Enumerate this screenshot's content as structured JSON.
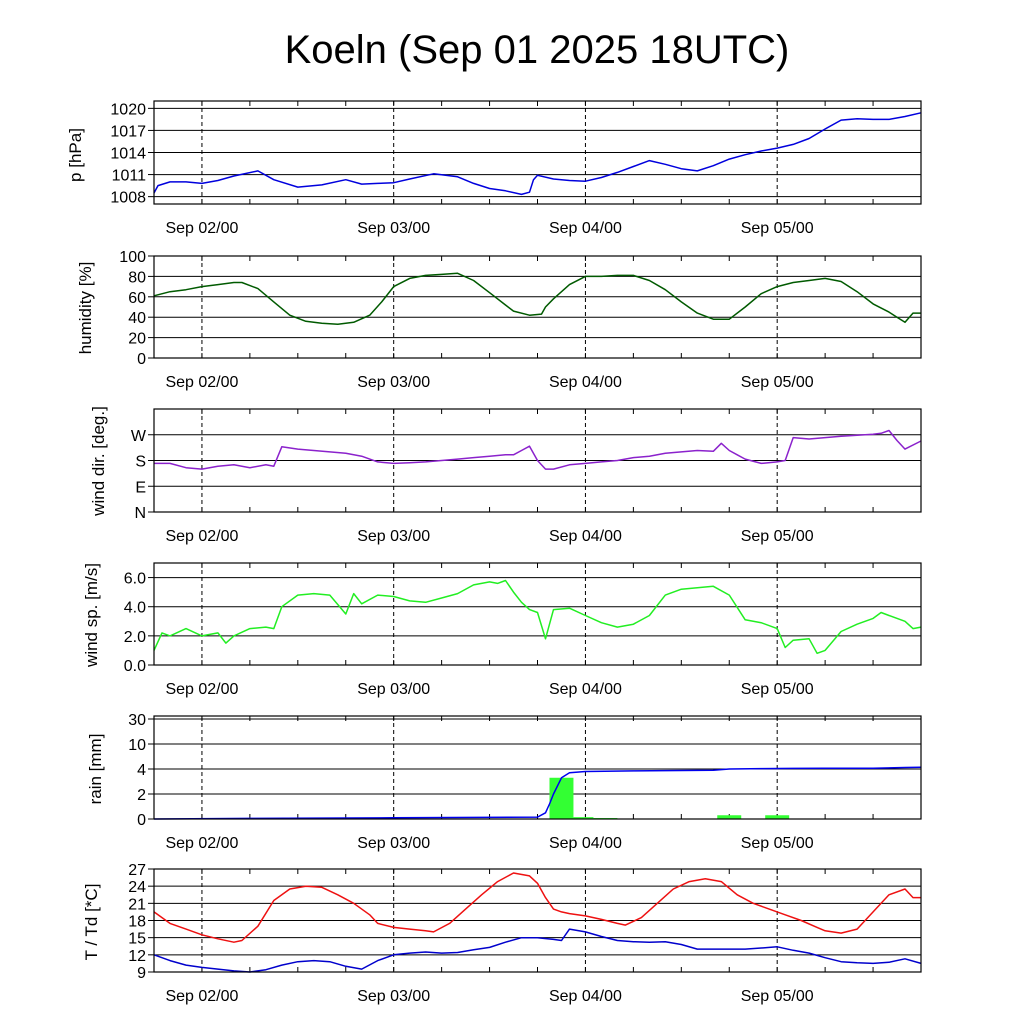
{
  "title": "Koeln (Sep 01 2025 18UTC)",
  "colors": {
    "pressure": "#0000dd",
    "humidity": "#005a00",
    "wind_dir": "#8b22cc",
    "wind_speed": "#22ee22",
    "rain_bars": "#33ff33",
    "rain_cumulative": "#0000ee",
    "temperature": "#ee1111",
    "dewpoint": "#0000cc"
  },
  "chart_data": [
    {
      "type": "line",
      "ylabel": "p [hPa]",
      "x_unit": "hours since Sep 01 18UTC",
      "xlim": [
        0,
        96
      ],
      "x_ticks": [
        6,
        30,
        54,
        78
      ],
      "x_ticklabels": [
        "Sep 02/00",
        "Sep 03/00",
        "Sep 04/00",
        "Sep 05/00"
      ],
      "ylim": [
        1007,
        1021
      ],
      "yticks": [
        1008,
        1011,
        1014,
        1017,
        1020
      ],
      "yticklabels": [
        "1008",
        "1011",
        "1014",
        "1017",
        "1020"
      ],
      "series": [
        {
          "name": "pressure",
          "x": [
            0,
            0.5,
            2,
            4,
            6,
            8,
            10,
            13,
            15,
            18,
            21,
            24,
            26,
            28,
            30,
            32,
            35,
            38,
            40,
            42,
            44,
            46,
            47,
            47.5,
            48,
            50,
            52,
            54,
            56,
            58,
            60,
            62,
            64,
            66,
            68,
            70,
            72,
            74,
            76,
            78,
            80,
            82,
            84,
            86,
            88,
            90,
            92,
            94,
            96
          ],
          "y": [
            1008.5,
            1009.5,
            1010.0,
            1010.0,
            1009.8,
            1010.2,
            1010.8,
            1011.5,
            1010.3,
            1009.3,
            1009.6,
            1010.3,
            1009.7,
            1009.8,
            1009.9,
            1010.4,
            1011.1,
            1010.7,
            1009.8,
            1009.1,
            1008.8,
            1008.3,
            1008.6,
            1010.3,
            1010.9,
            1010.4,
            1010.2,
            1010.1,
            1010.6,
            1011.3,
            1012.1,
            1012.9,
            1012.4,
            1011.8,
            1011.5,
            1012.2,
            1013.1,
            1013.7,
            1014.2,
            1014.6,
            1015.1,
            1015.9,
            1017.2,
            1018.4,
            1018.6,
            1018.5,
            1018.5,
            1018.9,
            1019.4
          ]
        }
      ]
    },
    {
      "type": "line",
      "ylabel": "humidity [%]",
      "x_unit": "hours since Sep 01 18UTC",
      "xlim": [
        0,
        96
      ],
      "x_ticks": [
        6,
        30,
        54,
        78
      ],
      "x_ticklabels": [
        "Sep 02/00",
        "Sep 03/00",
        "Sep 04/00",
        "Sep 05/00"
      ],
      "ylim": [
        0,
        100
      ],
      "yticks": [
        0,
        20,
        40,
        60,
        80,
        100
      ],
      "yticklabels": [
        "0",
        "20",
        "40",
        "60",
        "80",
        "100"
      ],
      "series": [
        {
          "name": "humidity",
          "x": [
            0,
            2,
            4,
            6,
            8,
            10,
            11,
            13,
            15,
            17,
            19,
            21,
            23,
            25,
            27,
            28.5,
            30,
            32,
            34,
            36,
            38,
            40,
            42,
            44,
            45,
            47,
            48.5,
            49,
            50,
            52,
            54,
            56,
            58,
            60,
            62,
            64,
            66,
            68,
            70,
            72,
            74,
            76,
            78,
            80,
            82,
            84,
            86,
            88,
            90,
            92,
            93,
            94,
            95,
            96
          ],
          "y": [
            61,
            65,
            67,
            70,
            72,
            74,
            74,
            68,
            55,
            42,
            36,
            34,
            33,
            35,
            42,
            55,
            70,
            78,
            81,
            82,
            83,
            76,
            64,
            52,
            46,
            42,
            43,
            50,
            58,
            72,
            80,
            80,
            81,
            81,
            76,
            67,
            55,
            44,
            38,
            38,
            50,
            63,
            70,
            74,
            76,
            78,
            75,
            65,
            53,
            45,
            40,
            35,
            44,
            44
          ]
        }
      ]
    },
    {
      "type": "line",
      "ylabel": "wind dir. [deg.]",
      "x_unit": "hours since Sep 01 18UTC",
      "xlim": [
        0,
        96
      ],
      "x_ticks": [
        6,
        30,
        54,
        78
      ],
      "x_ticklabels": [
        "Sep 02/00",
        "Sep 03/00",
        "Sep 04/00",
        "Sep 05/00"
      ],
      "ylim": [
        0,
        360
      ],
      "yticks": [
        0,
        90,
        180,
        270
      ],
      "yticklabels": [
        "N",
        "E",
        "S",
        "W"
      ],
      "series": [
        {
          "name": "wind direction",
          "x": [
            0,
            2,
            4,
            6,
            8,
            10,
            12,
            14,
            15,
            16,
            18,
            20,
            22,
            24,
            26,
            28,
            30,
            32,
            34,
            36,
            38,
            40,
            42,
            44,
            45,
            46,
            47,
            48,
            49,
            50,
            52,
            54,
            56,
            58,
            60,
            62,
            64,
            66,
            68,
            70,
            71,
            72,
            73,
            74,
            76,
            78,
            79,
            80,
            82,
            84,
            86,
            88,
            90,
            91,
            92,
            93,
            94,
            96
          ],
          "y": [
            170,
            170,
            155,
            150,
            160,
            165,
            155,
            165,
            160,
            228,
            220,
            215,
            210,
            205,
            195,
            175,
            170,
            172,
            175,
            180,
            185,
            190,
            195,
            200,
            200,
            215,
            230,
            180,
            150,
            150,
            165,
            170,
            175,
            180,
            190,
            195,
            205,
            210,
            215,
            212,
            240,
            215,
            200,
            185,
            170,
            175,
            180,
            260,
            255,
            260,
            265,
            268,
            272,
            275,
            285,
            250,
            220,
            248
          ]
        }
      ]
    },
    {
      "type": "line",
      "ylabel": "wind sp. [m/s]",
      "x_unit": "hours since Sep 01 18UTC",
      "xlim": [
        0,
        96
      ],
      "x_ticks": [
        6,
        30,
        54,
        78
      ],
      "x_ticklabels": [
        "Sep 02/00",
        "Sep 03/00",
        "Sep 04/00",
        "Sep 05/00"
      ],
      "ylim": [
        0,
        7
      ],
      "yticks": [
        0,
        2,
        4,
        6
      ],
      "yticklabels": [
        "0.0",
        "2.0",
        "4.0",
        "6.0"
      ],
      "series": [
        {
          "name": "wind speed",
          "x": [
            0,
            1,
            2,
            4,
            6,
            8,
            9,
            10,
            12,
            14,
            15,
            16,
            18,
            20,
            22,
            24,
            25,
            26,
            28,
            30,
            32,
            34,
            36,
            38,
            40,
            42,
            43,
            44,
            45,
            46,
            47,
            48,
            49,
            50,
            52,
            54,
            56,
            58,
            60,
            62,
            64,
            66,
            68,
            70,
            72,
            74,
            76,
            78,
            79,
            80,
            82,
            83,
            84,
            86,
            88,
            90,
            91,
            92,
            94,
            95,
            96
          ],
          "y": [
            1.0,
            2.2,
            2.0,
            2.5,
            2.0,
            2.2,
            1.5,
            2.0,
            2.5,
            2.6,
            2.5,
            4.0,
            4.8,
            4.9,
            4.8,
            3.5,
            4.9,
            4.2,
            4.8,
            4.7,
            4.4,
            4.3,
            4.6,
            4.9,
            5.5,
            5.7,
            5.6,
            5.8,
            5.0,
            4.3,
            3.8,
            3.6,
            1.8,
            3.8,
            3.9,
            3.4,
            2.9,
            2.6,
            2.8,
            3.4,
            4.8,
            5.2,
            5.3,
            5.4,
            4.8,
            3.1,
            2.9,
            2.5,
            1.2,
            1.7,
            1.8,
            0.8,
            1.0,
            2.3,
            2.8,
            3.2,
            3.6,
            3.4,
            3.0,
            2.5,
            2.6
          ]
        }
      ]
    },
    {
      "type": "bar",
      "ylabel": "rain [mm]",
      "x_unit": "hours since Sep 01 18UTC",
      "xlim": [
        0,
        96
      ],
      "x_ticks": [
        6,
        30,
        54,
        78
      ],
      "x_ticklabels": [
        "Sep 02/00",
        "Sep 03/00",
        "Sep 04/00",
        "Sep 05/00"
      ],
      "y_scale": "non-linear, evenly spaced ticks",
      "yticks": [
        0,
        2,
        4,
        10,
        30
      ],
      "yticklabels": [
        "0",
        "2",
        "4",
        "10",
        "30"
      ],
      "bars": [
        {
          "x_start": 49.5,
          "x_end": 52.5,
          "value": 3.3
        },
        {
          "x_start": 52.5,
          "x_end": 55.0,
          "value": 0.15
        },
        {
          "x_start": 55.0,
          "x_end": 58.0,
          "value": 0.08
        },
        {
          "x_start": 70.5,
          "x_end": 73.5,
          "value": 0.3
        },
        {
          "x_start": 76.5,
          "x_end": 79.5,
          "value": 0.3
        }
      ],
      "series": [
        {
          "name": "cumulative rain",
          "x": [
            0,
            12,
            30,
            48,
            49,
            49.5,
            50,
            51,
            52,
            54,
            60,
            70,
            72,
            76,
            80,
            84,
            90,
            94,
            96
          ],
          "y": [
            0,
            0.05,
            0.1,
            0.15,
            0.5,
            1.2,
            2.0,
            3.3,
            3.7,
            3.8,
            3.85,
            3.9,
            4.0,
            4.1,
            4.15,
            4.2,
            4.2,
            4.35,
            4.4
          ]
        }
      ]
    },
    {
      "type": "line",
      "ylabel": "T / Td [*C]",
      "x_unit": "hours since Sep 01 18UTC",
      "xlim": [
        0,
        96
      ],
      "x_ticks": [
        6,
        30,
        54,
        78
      ],
      "x_ticklabels": [
        "Sep 02/00",
        "Sep 03/00",
        "Sep 04/00",
        "Sep 05/00"
      ],
      "ylim": [
        9,
        27
      ],
      "yticks": [
        9,
        12,
        15,
        18,
        21,
        24,
        27
      ],
      "yticklabels": [
        "9",
        "12",
        "15",
        "18",
        "21",
        "24",
        "27"
      ],
      "series": [
        {
          "name": "temperature",
          "x": [
            0,
            2,
            4,
            6,
            8,
            10,
            11,
            13,
            15,
            17,
            19,
            21,
            23,
            25,
            27,
            28,
            30,
            32,
            34,
            35,
            37,
            39,
            41,
            43,
            45,
            47,
            48,
            49,
            50,
            51,
            52,
            54,
            56,
            58,
            59,
            61,
            63,
            65,
            67,
            69,
            71,
            73,
            75,
            77,
            79,
            81,
            83,
            84,
            86,
            88,
            90,
            92,
            94,
            95,
            96
          ],
          "y": [
            19.5,
            17.5,
            16.5,
            15.5,
            14.8,
            14.2,
            14.5,
            17.0,
            21.5,
            23.5,
            24.0,
            23.8,
            22.5,
            21.0,
            19.0,
            17.5,
            16.8,
            16.5,
            16.2,
            16.0,
            17.5,
            20.0,
            22.5,
            24.8,
            26.3,
            25.8,
            24.5,
            22.0,
            20.0,
            19.5,
            19.2,
            18.8,
            18.2,
            17.5,
            17.2,
            18.5,
            21.0,
            23.5,
            24.8,
            25.3,
            24.8,
            22.5,
            21.0,
            20.0,
            19.0,
            18.0,
            16.8,
            16.2,
            15.8,
            16.5,
            19.5,
            22.5,
            23.5,
            22.0,
            22.0
          ]
        },
        {
          "name": "dewpoint",
          "x": [
            0,
            2,
            4,
            6,
            8,
            10,
            12,
            14,
            16,
            18,
            20,
            22,
            24,
            26,
            28,
            30,
            32,
            34,
            36,
            38,
            40,
            42,
            44,
            46,
            48,
            50,
            51,
            52,
            54,
            56,
            58,
            60,
            62,
            64,
            66,
            68,
            70,
            72,
            74,
            76,
            78,
            80,
            82,
            84,
            86,
            88,
            90,
            92,
            94,
            96
          ],
          "y": [
            12.0,
            11.0,
            10.2,
            9.8,
            9.5,
            9.2,
            9.0,
            9.4,
            10.2,
            10.8,
            11.0,
            10.8,
            10.0,
            9.5,
            11.0,
            12.0,
            12.3,
            12.5,
            12.3,
            12.4,
            12.9,
            13.3,
            14.2,
            15.0,
            15.0,
            14.7,
            14.5,
            16.5,
            16.0,
            15.2,
            14.5,
            14.3,
            14.2,
            14.3,
            13.8,
            13.0,
            13.0,
            13.0,
            13.0,
            13.2,
            13.4,
            12.8,
            12.3,
            11.5,
            10.8,
            10.6,
            10.5,
            10.7,
            11.3,
            10.5
          ]
        }
      ]
    }
  ]
}
